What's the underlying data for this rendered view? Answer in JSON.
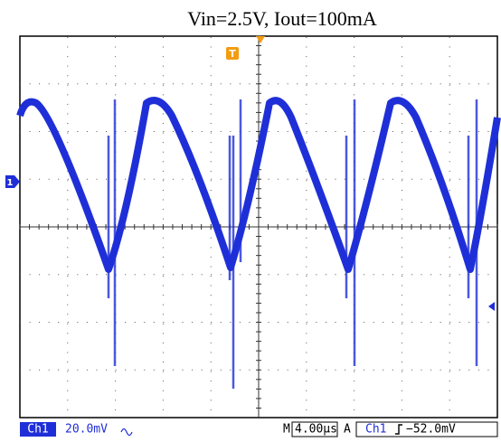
{
  "title": "Vin=2.5V, Iout=100mA",
  "markers": {
    "trigger": "T",
    "ground": "1"
  },
  "status": {
    "channel": "Ch1",
    "volts_per_div": "20.0mV",
    "timebase_prefix": "M",
    "timebase": "4.00µs",
    "acquire": "A",
    "trigger_source": "Ch1",
    "trigger_level": "−52.0mV"
  }
}
